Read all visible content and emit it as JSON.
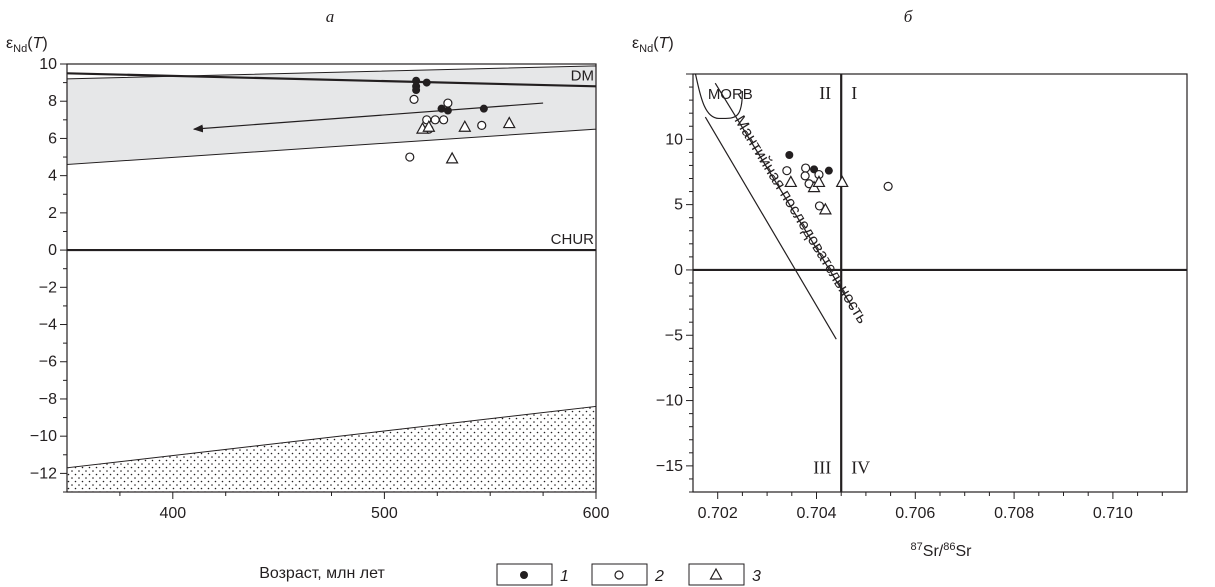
{
  "chart_data": [
    {
      "panel_label": "а",
      "type": "scatter",
      "xlabel": "Возраст,  млн лет",
      "ylabel": "εNd(T)",
      "xlim": [
        350,
        600
      ],
      "ylim": [
        -13,
        10
      ],
      "xticks": [
        400,
        500,
        600
      ],
      "yticks": [
        10,
        8,
        6,
        4,
        2,
        0,
        -2,
        -4,
        -6,
        -8,
        -10,
        -12
      ],
      "grid": false,
      "reference_lines": [
        {
          "label": "DM",
          "points": [
            [
              350,
              9.5
            ],
            [
              600,
              8.8
            ]
          ]
        },
        {
          "label": "CHUR",
          "points": [
            [
              350,
              0
            ],
            [
              600,
              0
            ]
          ]
        }
      ],
      "band_points": [
        [
          350,
          4.6
        ],
        [
          350,
          9.2
        ],
        [
          600,
          9.9
        ],
        [
          600,
          6.5
        ]
      ],
      "dotted_field_points": [
        [
          350,
          -13
        ],
        [
          350,
          -11.7
        ],
        [
          600,
          -8.4
        ],
        [
          600,
          -13
        ]
      ],
      "trend_arrow": {
        "from": [
          575,
          7.9
        ],
        "to": [
          410,
          6.5
        ]
      },
      "series": [
        {
          "name": "1",
          "marker": "filled-circle",
          "points": [
            [
              515,
              9.1
            ],
            [
              515,
              8.8
            ],
            [
              515,
              8.6
            ],
            [
              520,
              9.0
            ],
            [
              527,
              7.6
            ],
            [
              530,
              7.5
            ],
            [
              547,
              7.6
            ]
          ]
        },
        {
          "name": "2",
          "marker": "open-circle",
          "points": [
            [
              514,
              8.1
            ],
            [
              530,
              7.9
            ],
            [
              520,
              7.0
            ],
            [
              524,
              7.0
            ],
            [
              528,
              7.0
            ],
            [
              521,
              6.5
            ],
            [
              546,
              6.7
            ],
            [
              512,
              5.0
            ]
          ]
        },
        {
          "name": "3",
          "marker": "open-triangle",
          "points": [
            [
              518,
              6.5
            ],
            [
              521,
              6.6
            ],
            [
              538,
              6.6
            ],
            [
              559,
              6.8
            ],
            [
              532,
              4.9
            ]
          ]
        }
      ]
    },
    {
      "panel_label": "б",
      "type": "scatter",
      "xlabel_sup1": "87",
      "xlabel_mid": "Sr/",
      "xlabel_sup2": "86",
      "xlabel_end": "Sr",
      "ylabel": "εNd(T)",
      "xlim": [
        0.7015,
        0.7115
      ],
      "ylim": [
        -17,
        15
      ],
      "xticks": [
        "0.702",
        "0.704",
        "0.706",
        "0.708",
        "0.710"
      ],
      "yticks": [
        10,
        5,
        0,
        -5,
        -10,
        -15
      ],
      "grid": false,
      "divider_lines": {
        "x": 0.7045,
        "y": 0
      },
      "quadrant_labels": [
        "I",
        "II",
        "III",
        "IV"
      ],
      "field_labels": {
        "morb": "MORB",
        "mantle_array": "Мантийная последовательность"
      },
      "series": [
        {
          "name": "1",
          "marker": "filled-circle",
          "points": [
            [
              0.70345,
              8.8
            ],
            [
              0.70395,
              7.7
            ],
            [
              0.70425,
              7.6
            ]
          ]
        },
        {
          "name": "2",
          "marker": "open-circle",
          "points": [
            [
              0.7034,
              7.6
            ],
            [
              0.70378,
              7.8
            ],
            [
              0.70377,
              7.2
            ],
            [
              0.70385,
              6.6
            ],
            [
              0.70405,
              7.3
            ],
            [
              0.70406,
              4.9
            ],
            [
              0.70545,
              6.4
            ]
          ]
        },
        {
          "name": "3",
          "marker": "open-triangle",
          "points": [
            [
              0.70348,
              6.7
            ],
            [
              0.70395,
              6.3
            ],
            [
              0.70405,
              6.7
            ],
            [
              0.70418,
              4.6
            ],
            [
              0.70452,
              6.7
            ]
          ]
        }
      ]
    }
  ],
  "legend": [
    {
      "marker": "filled-circle",
      "label": "1"
    },
    {
      "marker": "open-circle",
      "label": "2"
    },
    {
      "marker": "open-triangle",
      "label": "3"
    }
  ],
  "colors": {
    "ink": "#231f20",
    "band": "#e6e7e8"
  }
}
